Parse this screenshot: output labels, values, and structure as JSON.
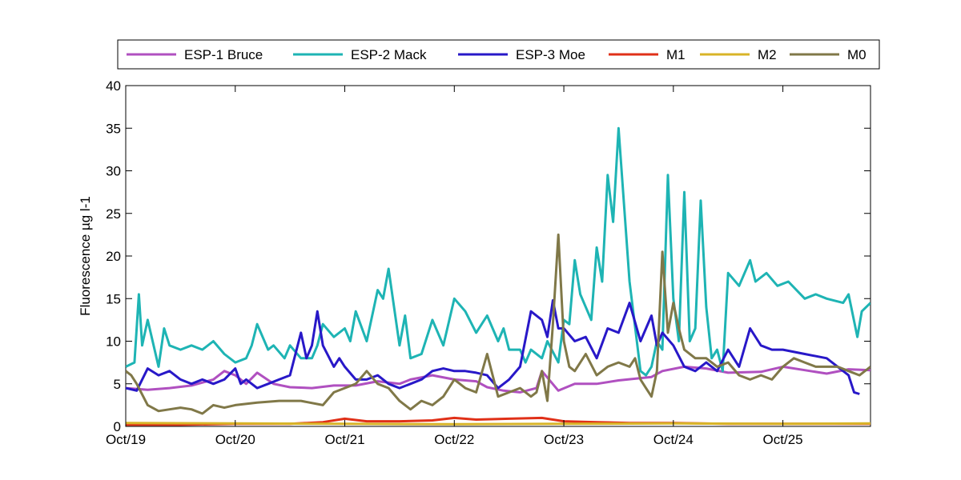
{
  "chart_data": {
    "type": "line",
    "title": "",
    "xlabel": "",
    "ylabel": "Fluorescence µg l-1",
    "ylim": [
      0,
      40
    ],
    "yticks": [
      "0",
      "5",
      "10",
      "15",
      "20",
      "25",
      "30",
      "35",
      "40"
    ],
    "xlim": [
      0,
      6.8
    ],
    "xticks": [
      {
        "x": 0,
        "label": "Oct/19"
      },
      {
        "x": 1,
        "label": "Oct/20"
      },
      {
        "x": 2,
        "label": "Oct/21"
      },
      {
        "x": 3,
        "label": "Oct/22"
      },
      {
        "x": 4,
        "label": "Oct/23"
      },
      {
        "x": 5,
        "label": "Oct/24"
      },
      {
        "x": 6,
        "label": "Oct/25"
      }
    ],
    "grid": false,
    "legend_placement": "top, horizontal, outside plot",
    "series": [
      {
        "name": "ESP-1 Bruce",
        "color": "#b050c0",
        "x": [
          0,
          0.2,
          0.4,
          0.6,
          0.8,
          0.9,
          1.0,
          1.1,
          1.2,
          1.35,
          1.5,
          1.7,
          1.9,
          2.1,
          2.3,
          2.5,
          2.6,
          2.8,
          3.0,
          3.2,
          3.3,
          3.45,
          3.6,
          3.75,
          3.8,
          3.95,
          4.1,
          4.3,
          4.5,
          4.8,
          4.9,
          5.1,
          5.3,
          5.5,
          5.8,
          6.0,
          6.2,
          6.4,
          6.6,
          6.8
        ],
        "y": [
          4.5,
          4.3,
          4.5,
          4.8,
          5.5,
          6.5,
          6.0,
          5.0,
          6.3,
          5.0,
          4.6,
          4.5,
          4.8,
          4.8,
          5.3,
          5.0,
          5.5,
          6.0,
          5.5,
          5.3,
          4.6,
          4.2,
          4.0,
          4.5,
          6.5,
          4.2,
          5.0,
          5.0,
          5.4,
          5.8,
          6.5,
          7.0,
          6.8,
          6.3,
          6.4,
          7.0,
          6.6,
          6.2,
          6.7,
          6.6
        ]
      },
      {
        "name": "ESP-2 Mack",
        "color": "#1eb4b4",
        "x": [
          0,
          0.08,
          0.12,
          0.15,
          0.2,
          0.3,
          0.35,
          0.4,
          0.5,
          0.6,
          0.7,
          0.8,
          0.9,
          1.0,
          1.1,
          1.15,
          1.2,
          1.3,
          1.35,
          1.45,
          1.5,
          1.6,
          1.7,
          1.75,
          1.8,
          1.9,
          2.0,
          2.05,
          2.1,
          2.2,
          2.3,
          2.35,
          2.4,
          2.5,
          2.55,
          2.6,
          2.7,
          2.8,
          2.9,
          3.0,
          3.1,
          3.2,
          3.3,
          3.4,
          3.45,
          3.5,
          3.6,
          3.65,
          3.7,
          3.8,
          3.85,
          3.95,
          4.0,
          4.05,
          4.1,
          4.15,
          4.25,
          4.3,
          4.35,
          4.4,
          4.45,
          4.5,
          4.6,
          4.7,
          4.75,
          4.8,
          4.85,
          4.9,
          4.95,
          5.0,
          5.05,
          5.1,
          5.15,
          5.2,
          5.25,
          5.3,
          5.35,
          5.4,
          5.45,
          5.5,
          5.6,
          5.7,
          5.75,
          5.85,
          5.95,
          6.05,
          6.2,
          6.3,
          6.4,
          6.55,
          6.6,
          6.68,
          6.72,
          6.8
        ],
        "y": [
          7.0,
          7.5,
          15.5,
          9.5,
          12.5,
          7.0,
          11.5,
          9.5,
          9.0,
          9.5,
          9.0,
          10.0,
          8.5,
          7.5,
          8.0,
          9.5,
          12.0,
          9.0,
          9.5,
          8.0,
          9.5,
          8.0,
          8.0,
          9.5,
          12.0,
          10.5,
          11.5,
          10.0,
          13.5,
          10.0,
          16.0,
          15.0,
          18.5,
          9.5,
          13.0,
          8.0,
          8.5,
          12.5,
          9.5,
          15.0,
          13.5,
          11.0,
          13.0,
          10.0,
          11.5,
          9.0,
          9.0,
          7.5,
          9.0,
          8.0,
          10.0,
          7.5,
          12.5,
          12.0,
          19.5,
          15.5,
          12.5,
          21.0,
          17.0,
          29.5,
          24.0,
          35.0,
          17.0,
          6.5,
          6.0,
          7.0,
          10.0,
          9.0,
          29.5,
          15.0,
          10.0,
          27.5,
          10.0,
          11.5,
          26.5,
          14.0,
          8.0,
          9.0,
          6.5,
          18.0,
          16.5,
          19.5,
          17.0,
          18.0,
          16.5,
          17.0,
          15.0,
          15.5,
          15.0,
          14.5,
          15.5,
          10.5,
          13.5,
          14.5
        ]
      },
      {
        "name": "ESP-3 Moe",
        "color": "#2818c8",
        "x": [
          0,
          0.1,
          0.2,
          0.3,
          0.4,
          0.5,
          0.6,
          0.7,
          0.8,
          0.9,
          1.0,
          1.05,
          1.1,
          1.2,
          1.3,
          1.4,
          1.5,
          1.6,
          1.65,
          1.7,
          1.75,
          1.8,
          1.9,
          1.95,
          2.0,
          2.1,
          2.2,
          2.3,
          2.4,
          2.5,
          2.6,
          2.7,
          2.8,
          2.9,
          3.0,
          3.1,
          3.2,
          3.3,
          3.4,
          3.45,
          3.5,
          3.6,
          3.7,
          3.8,
          3.85,
          3.9,
          3.95,
          4.0,
          4.1,
          4.2,
          4.3,
          4.4,
          4.5,
          4.6,
          4.7,
          4.8,
          4.85,
          4.9,
          5.0,
          5.1,
          5.2,
          5.3,
          5.4,
          5.5,
          5.6,
          5.7,
          5.8,
          5.9,
          6.0,
          6.2,
          6.4,
          6.5,
          6.6,
          6.65,
          6.7
        ],
        "y": [
          4.5,
          4.2,
          6.8,
          6.0,
          6.5,
          5.5,
          5.0,
          5.5,
          5.0,
          5.5,
          6.8,
          5.0,
          5.5,
          4.5,
          5.0,
          5.5,
          6.0,
          11.0,
          8.0,
          9.5,
          13.5,
          9.5,
          7.0,
          8.0,
          7.0,
          5.5,
          5.5,
          6.0,
          5.0,
          4.5,
          5.0,
          5.5,
          6.5,
          6.8,
          6.5,
          6.5,
          6.3,
          6.0,
          4.5,
          5.0,
          5.5,
          7.0,
          13.5,
          12.5,
          10.5,
          14.8,
          11.5,
          11.5,
          10.0,
          10.5,
          8.0,
          11.5,
          11.0,
          14.5,
          10.0,
          13.0,
          9.5,
          11.0,
          9.5,
          7.0,
          6.5,
          7.5,
          6.5,
          9.0,
          7.0,
          11.5,
          9.5,
          9.0,
          9.0,
          8.5,
          8.0,
          7.0,
          6.0,
          4.0,
          3.8
        ]
      },
      {
        "name": "M1",
        "color": "#e03018",
        "x": [
          0,
          0.5,
          1.0,
          1.5,
          1.8,
          2.0,
          2.2,
          2.5,
          2.8,
          3.0,
          3.2,
          3.5,
          3.8,
          4.0,
          4.3,
          4.6,
          5.0,
          5.5,
          6.0,
          6.5,
          6.8
        ],
        "y": [
          0.2,
          0.2,
          0.3,
          0.3,
          0.5,
          0.9,
          0.6,
          0.6,
          0.7,
          1.0,
          0.8,
          0.9,
          1.0,
          0.6,
          0.5,
          0.4,
          0.4,
          0.3,
          0.3,
          0.3,
          0.3
        ]
      },
      {
        "name": "M2",
        "color": "#d8b428",
        "x": [
          0,
          1.0,
          2.0,
          3.0,
          4.0,
          5.0,
          6.0,
          6.8
        ],
        "y": [
          0.4,
          0.35,
          0.3,
          0.25,
          0.3,
          0.35,
          0.3,
          0.35
        ]
      },
      {
        "name": "M0",
        "color": "#807848",
        "x": [
          0,
          0.05,
          0.1,
          0.2,
          0.3,
          0.4,
          0.5,
          0.6,
          0.7,
          0.8,
          0.9,
          1.0,
          1.2,
          1.4,
          1.6,
          1.8,
          1.9,
          2.0,
          2.1,
          2.2,
          2.3,
          2.4,
          2.5,
          2.6,
          2.7,
          2.8,
          2.9,
          3.0,
          3.1,
          3.2,
          3.3,
          3.4,
          3.5,
          3.6,
          3.7,
          3.75,
          3.8,
          3.85,
          3.9,
          3.95,
          4.0,
          4.05,
          4.1,
          4.2,
          4.3,
          4.4,
          4.5,
          4.6,
          4.65,
          4.7,
          4.75,
          4.8,
          4.85,
          4.9,
          4.95,
          5.0,
          5.05,
          5.1,
          5.2,
          5.3,
          5.4,
          5.5,
          5.6,
          5.7,
          5.8,
          5.9,
          6.0,
          6.1,
          6.2,
          6.3,
          6.4,
          6.5,
          6.6,
          6.7,
          6.8
        ],
        "y": [
          6.5,
          6.0,
          5.0,
          2.5,
          1.8,
          2.0,
          2.2,
          2.0,
          1.5,
          2.5,
          2.2,
          2.5,
          2.8,
          3.0,
          3.0,
          2.5,
          4.0,
          4.5,
          5.0,
          6.5,
          5.0,
          4.5,
          3.0,
          2.0,
          3.0,
          2.5,
          3.5,
          5.5,
          4.5,
          4.0,
          8.5,
          3.5,
          4.0,
          4.5,
          3.5,
          4.0,
          6.5,
          3.0,
          12.0,
          22.5,
          10.0,
          7.0,
          6.5,
          8.5,
          6.0,
          7.0,
          7.5,
          7.0,
          8.0,
          5.5,
          4.5,
          3.5,
          6.5,
          20.5,
          11.0,
          14.5,
          11.5,
          9.0,
          8.0,
          8.0,
          7.0,
          7.5,
          6.0,
          5.5,
          6.0,
          5.5,
          7.0,
          8.0,
          7.5,
          7.0,
          7.0,
          7.0,
          6.5,
          6.0,
          7.0
        ]
      }
    ]
  }
}
